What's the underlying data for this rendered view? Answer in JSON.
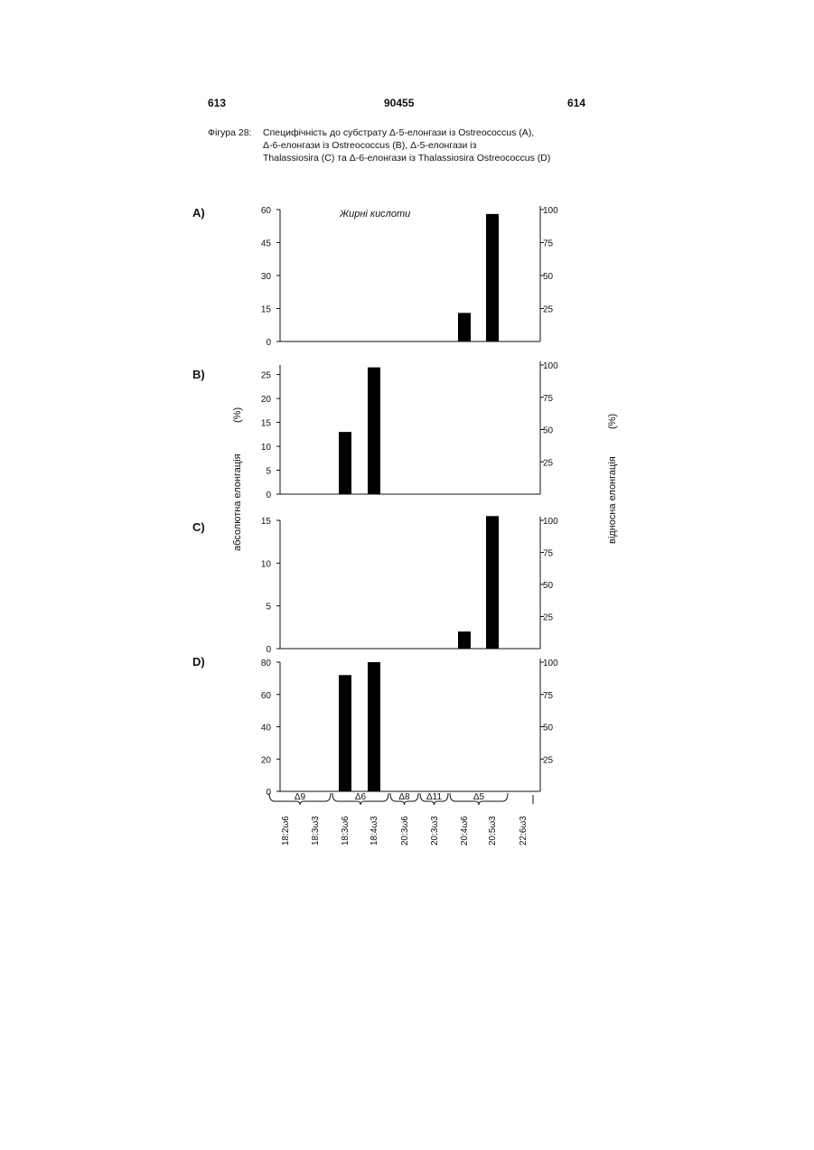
{
  "header": {
    "page_left": "613",
    "page_center": "90455",
    "page_right": "614"
  },
  "caption": {
    "label": "Фігура 28:",
    "lines": [
      "Специфічність до субстрату Δ-5-елонгази із Ostreococcus (A),",
      "Δ-6-елонгази із Ostreococcus (B),  Δ-5-елонгази із",
      "Thalassiosira (C) та Δ-6-елонгази із Thalassiosira Ostreococcus (D)"
    ]
  },
  "chart_data": {
    "type": "bar",
    "annotation": "Жирні кислоти",
    "ylabel_left": "абсолютна елонгація",
    "ylabel_left_unit": "(%)",
    "ylabel_right": "відносна елонгація",
    "ylabel_right_unit": "(%)",
    "categories": [
      "18:2ω6",
      "18:3ω3",
      "18:3ω6",
      "18:4ω3",
      "20:3ω6",
      "20:3ω3",
      "20:4ω6",
      "20:5ω3",
      "22:6ω3"
    ],
    "groups": [
      {
        "label": "Δ9",
        "categories": [
          "18:2ω6",
          "18:3ω3"
        ]
      },
      {
        "label": "Δ6",
        "categories": [
          "18:3ω6",
          "18:4ω3"
        ]
      },
      {
        "label": "Δ8",
        "categories": [
          "20:3ω6"
        ]
      },
      {
        "label": "Δ11",
        "categories": [
          "20:3ω3"
        ]
      },
      {
        "label": "Δ5",
        "categories": [
          "20:4ω6",
          "20:5ω3"
        ]
      }
    ],
    "panels": [
      {
        "label": "A)",
        "left_ylim": [
          0,
          60
        ],
        "left_ticks": [
          0,
          15,
          30,
          45,
          60
        ],
        "right_ticks": [
          25,
          50,
          75,
          100
        ],
        "values": [
          0,
          0,
          0,
          0,
          0,
          0,
          13,
          58,
          0
        ]
      },
      {
        "label": "B)",
        "left_ylim": [
          0,
          27
        ],
        "left_ticks": [
          0,
          5,
          10,
          15,
          20,
          25
        ],
        "right_ticks": [
          25,
          50,
          75,
          100
        ],
        "values": [
          0,
          0,
          13,
          26.5,
          0,
          0,
          0,
          0,
          0
        ]
      },
      {
        "label": "C)",
        "left_ylim": [
          0,
          15
        ],
        "left_ticks": [
          0,
          5,
          10,
          15
        ],
        "right_ticks": [
          25,
          50,
          75,
          100
        ],
        "values": [
          0,
          0,
          0,
          0,
          0,
          0,
          2,
          15.5,
          0
        ]
      },
      {
        "label": "D)",
        "left_ylim": [
          0,
          80
        ],
        "left_ticks": [
          0,
          20,
          40,
          60,
          80
        ],
        "right_ticks": [
          25,
          50,
          75,
          100
        ],
        "values": [
          0,
          0,
          72,
          80,
          0,
          0,
          0,
          0,
          0
        ]
      }
    ]
  }
}
